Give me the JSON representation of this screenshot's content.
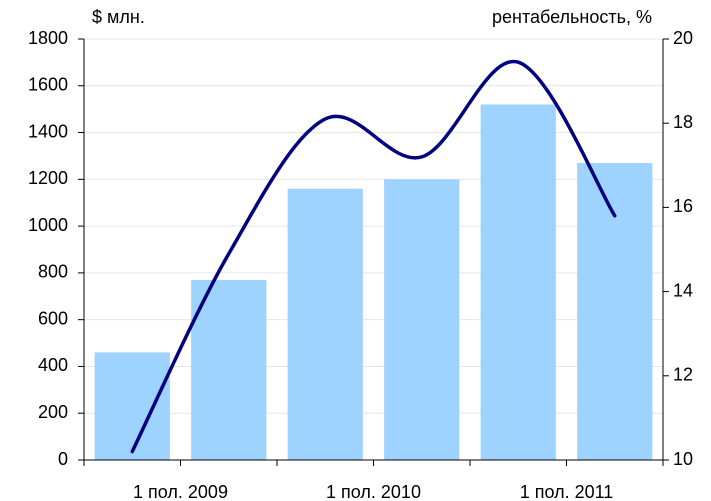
{
  "chart_data": {
    "type": "bar_line",
    "y_label": "$ млн.",
    "y2_label": "рентабельность, %",
    "categories": [
      "1 пол. 2009",
      null,
      "1 пол. 2010",
      null,
      "1 пол. 2011",
      null
    ],
    "series": [
      {
        "type": "bar",
        "color": "#9fd3ff",
        "values": [
          460,
          770,
          1160,
          1200,
          1520,
          1270
        ]
      },
      {
        "type": "line",
        "color": "#000080",
        "axis": "y2",
        "values": [
          10.2,
          14.9,
          18.1,
          17.2,
          19.45,
          15.8
        ]
      }
    ],
    "ylim": [
      0,
      1800
    ],
    "yticks": [
      0,
      200,
      400,
      600,
      800,
      1000,
      1200,
      1400,
      1600,
      1800
    ],
    "y2lim": [
      10,
      20
    ],
    "y2ticks": [
      10,
      12,
      14,
      16,
      18,
      20
    ],
    "grid": true
  }
}
